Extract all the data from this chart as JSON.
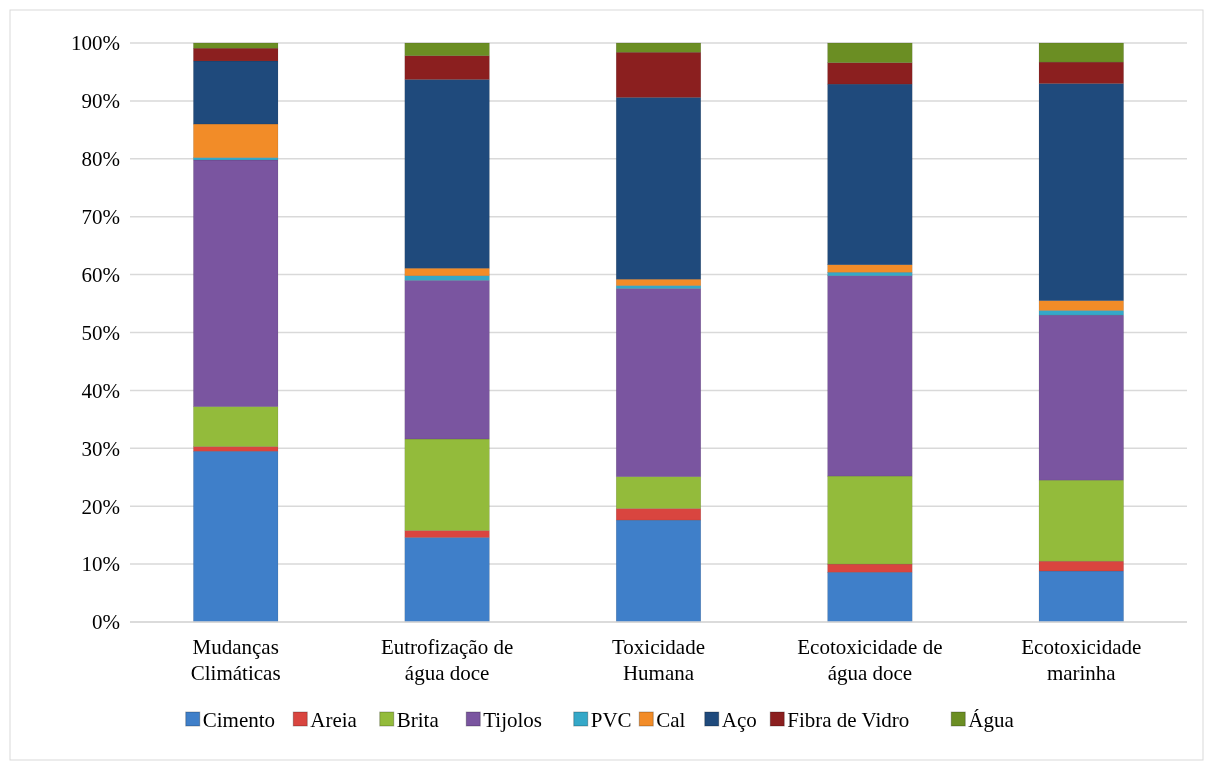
{
  "chart_data": {
    "type": "bar",
    "stacked": true,
    "categories": [
      "Mudanças\nClimáticas",
      "Eutrofização de\nágua doce",
      "Toxicidade\nHumana",
      "Ecotoxicidade de\nágua doce",
      "Ecotoxicidade\nmarinha"
    ],
    "series": [
      {
        "name": "Cimento",
        "color": "#3f7fc9",
        "values": [
          29.5,
          14.6,
          17.6,
          8.6,
          8.8
        ]
      },
      {
        "name": "Areia",
        "color": "#d9453f",
        "values": [
          0.8,
          1.2,
          2.0,
          1.4,
          1.7
        ]
      },
      {
        "name": "Brita",
        "color": "#93bb3b",
        "values": [
          6.9,
          15.8,
          5.5,
          15.2,
          14.0
        ]
      },
      {
        "name": "Tijolos",
        "color": "#7a55a0",
        "values": [
          42.6,
          27.4,
          32.5,
          34.6,
          28.5
        ]
      },
      {
        "name": "PVC",
        "color": "#35a8c8",
        "values": [
          0.4,
          0.8,
          0.5,
          0.6,
          0.8
        ]
      },
      {
        "name": "Cal",
        "color": "#f28c28",
        "values": [
          5.8,
          1.3,
          1.1,
          1.3,
          1.7
        ]
      },
      {
        "name": "Aço",
        "color": "#1f4a7c",
        "values": [
          10.9,
          32.6,
          31.4,
          31.2,
          37.5
        ]
      },
      {
        "name": "Fibra de Vidro",
        "color": "#8b1f1f",
        "values": [
          2.2,
          4.1,
          7.8,
          3.7,
          3.7
        ]
      },
      {
        "name": "Água",
        "color": "#6b8e23",
        "values": [
          0.9,
          2.2,
          1.6,
          3.4,
          3.3
        ]
      }
    ],
    "ylim": [
      0,
      100
    ],
    "yticks": [
      {
        "value": 0,
        "label": "0%"
      },
      {
        "value": 10,
        "label": "10%"
      },
      {
        "value": 20,
        "label": "20%"
      },
      {
        "value": 30,
        "label": "30%"
      },
      {
        "value": 40,
        "label": "40%"
      },
      {
        "value": 50,
        "label": "50%"
      },
      {
        "value": 60,
        "label": "60%"
      },
      {
        "value": 70,
        "label": "70%"
      },
      {
        "value": 80,
        "label": "80%"
      },
      {
        "value": 90,
        "label": "90%"
      },
      {
        "value": 100,
        "label": "100%"
      }
    ],
    "grid": "y",
    "legend": "bottom"
  }
}
